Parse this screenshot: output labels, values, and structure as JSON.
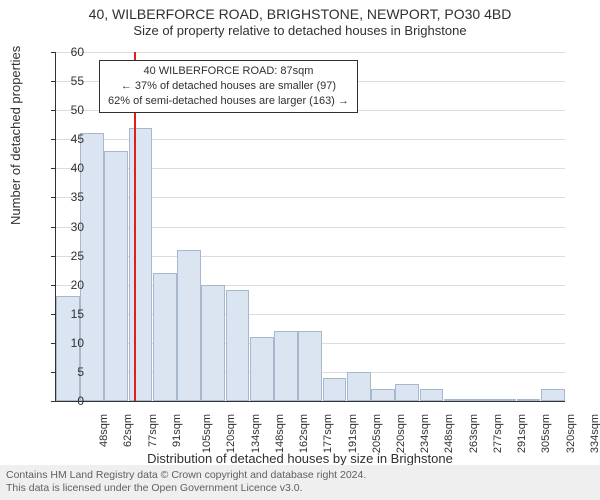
{
  "title": "40, WILBERFORCE ROAD, BRIGHSTONE, NEWPORT, PO30 4BD",
  "subtitle": "Size of property relative to detached houses in Brighstone",
  "ylabel": "Number of detached properties",
  "xlabel": "Distribution of detached houses by size in Brighstone",
  "footer_line1": "Contains HM Land Registry data © Crown copyright and database right 2024.",
  "footer_line2": "This data is licensed under the Open Government Licence v3.0.",
  "callout": {
    "line1": "40 WILBERFORCE ROAD: 87sqm",
    "line2": "← 37% of detached houses are smaller (97)",
    "line3": "62% of semi-detached houses are larger (163) →"
  },
  "chart": {
    "type": "histogram",
    "ylim": [
      0,
      60
    ],
    "ytick_step": 5,
    "bar_fill": "#dbe5f2",
    "bar_stroke": "#a8b8cc",
    "grid_color": "#dcdcdc",
    "background_color": "#ffffff",
    "ref_line_color": "#e02020",
    "ref_line_x": 87,
    "x_categories": [
      "48sqm",
      "62sqm",
      "77sqm",
      "91sqm",
      "105sqm",
      "120sqm",
      "134sqm",
      "148sqm",
      "162sqm",
      "177sqm",
      "191sqm",
      "205sqm",
      "220sqm",
      "234sqm",
      "248sqm",
      "263sqm",
      "277sqm",
      "291sqm",
      "305sqm",
      "320sqm",
      "334sqm"
    ],
    "values": [
      18,
      46,
      43,
      47,
      22,
      26,
      20,
      19,
      11,
      12,
      12,
      4,
      5,
      2,
      3,
      2,
      0,
      0,
      0,
      0,
      2
    ],
    "bar_width_ratio": 0.98,
    "title_fontsize": 14,
    "label_fontsize": 13,
    "tick_fontsize": 11
  }
}
